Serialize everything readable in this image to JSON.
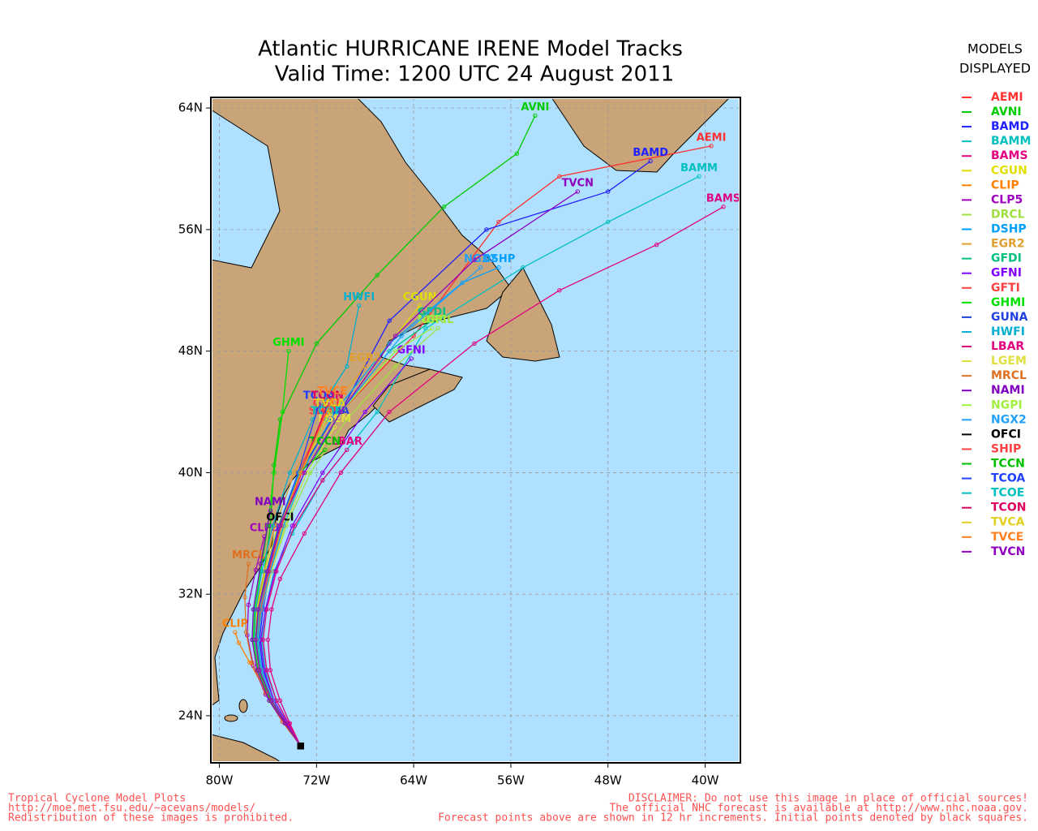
{
  "chart_data": {
    "type": "map",
    "title": "Atlantic HURRICANE IRENE Model Tracks",
    "subtitle": "Valid Time: 1200 UTC 24 August 2011",
    "legend_title": [
      "MODELS",
      "DISPLAYED"
    ],
    "footer_left": [
      "Tropical Cyclone Model Plots",
      "http://moe.met.fsu.edu/~acevans/models/",
      "Redistribution of these images is prohibited."
    ],
    "footer_right": [
      "DISCLAIMER: Do not use this image in place of official sources!",
      "The official NHC forecast is available at http://www.nhc.noaa.gov.",
      "Forecast points above are shown in 12 hr increments. Initial points denoted by black squares."
    ],
    "xlim": [
      -80.7,
      -37.1
    ],
    "ylim": [
      20.9,
      64.7
    ],
    "xticks": [
      {
        "value": -80,
        "label": "80W"
      },
      {
        "value": -72,
        "label": "72W"
      },
      {
        "value": -64,
        "label": "64W"
      },
      {
        "value": -56,
        "label": "56W"
      },
      {
        "value": -48,
        "label": "48W"
      },
      {
        "value": -40,
        "label": "40W"
      }
    ],
    "yticks": [
      {
        "value": 24,
        "label": "24N"
      },
      {
        "value": 32,
        "label": "32N"
      },
      {
        "value": 40,
        "label": "40N"
      },
      {
        "value": 48,
        "label": "48N"
      },
      {
        "value": 56,
        "label": "56N"
      },
      {
        "value": 64,
        "label": "64N"
      }
    ],
    "grid": true,
    "series": [
      {
        "name": "AEMI",
        "color": "#ff3030",
        "x": [
          -73.3,
          -74.5,
          -75.7,
          -76.7,
          -77,
          -76.8,
          -76,
          -75,
          -73,
          -70,
          -64,
          -57,
          -52,
          -39.5
        ],
        "values": [
          22,
          23.5,
          25,
          27,
          29,
          31,
          33.5,
          36.5,
          40,
          44,
          49,
          56.5,
          59.5,
          61.5
        ]
      },
      {
        "name": "AVNI",
        "color": "#00cc00",
        "x": [
          -73.3,
          -74.5,
          -75.7,
          -76.7,
          -77,
          -76.9,
          -76.3,
          -75.8,
          -75.5,
          -75,
          -72,
          -67,
          -61.5,
          -55.5,
          -54
        ],
        "values": [
          22,
          23.5,
          25,
          27,
          29,
          31,
          33.5,
          36.5,
          40.5,
          43.5,
          48.5,
          53,
          57.5,
          61,
          63.5
        ]
      },
      {
        "name": "BAMD",
        "color": "#2020ff",
        "x": [
          -73.3,
          -74.4,
          -75.5,
          -76.4,
          -76.7,
          -76.4,
          -75.8,
          -74.8,
          -73,
          -70,
          -66,
          -58,
          -48,
          -44.5
        ],
        "values": [
          22,
          23.5,
          25,
          27,
          29,
          31,
          33.5,
          36.5,
          40,
          44,
          50,
          56,
          58.5,
          60.5
        ]
      },
      {
        "name": "BAMM",
        "color": "#00c0c0",
        "x": [
          -73.3,
          -74.3,
          -75.3,
          -76.2,
          -76.5,
          -76.2,
          -75.5,
          -74,
          -71.5,
          -67,
          -63,
          -55,
          -48,
          -40.5
        ],
        "values": [
          22,
          23.5,
          25,
          27,
          29,
          31,
          33.5,
          36,
          39.5,
          44,
          49.5,
          53.5,
          56.5,
          59.5
        ]
      },
      {
        "name": "BAMS",
        "color": "#e00080",
        "x": [
          -73.3,
          -74.2,
          -75,
          -75.8,
          -76,
          -75.7,
          -75,
          -73,
          -70,
          -66,
          -59,
          -52,
          -44,
          -38.5
        ],
        "values": [
          22,
          23.5,
          25,
          27,
          29,
          31,
          33,
          36,
          40,
          44,
          48.5,
          52,
          55,
          57.5
        ]
      },
      {
        "name": "CGUN",
        "color": "#e0e000",
        "x": [
          -73.3,
          -74.5,
          -75.7,
          -76.7,
          -77.1,
          -76.9,
          -76.2,
          -75.2,
          -73.3,
          -70.5,
          -66.5,
          -63.5
        ],
        "values": [
          22,
          23.5,
          25,
          27,
          29,
          31,
          33.5,
          36.5,
          40,
          44,
          48,
          51
        ]
      },
      {
        "name": "CLIP",
        "color": "#ff8000",
        "x": [
          -73.3,
          -74.8,
          -76.3,
          -77.5,
          -78.4,
          -78.7
        ],
        "values": [
          22,
          23.8,
          25.8,
          27.5,
          28.8,
          29.5
        ]
      },
      {
        "name": "CLP5",
        "color": "#a000c0",
        "x": [
          -73.3,
          -74.8,
          -76.2,
          -77.2,
          -77.7,
          -77.6,
          -77,
          -76.3
        ],
        "values": [
          22,
          23.6,
          25.4,
          27.3,
          29.3,
          31.3,
          33.6,
          35.8
        ]
      },
      {
        "name": "DRCL",
        "color": "#a0e040",
        "x": [
          -73.3,
          -74.5,
          -75.6,
          -76.5,
          -76.8,
          -76.5,
          -75.7,
          -74.5,
          -72.5,
          -69.5,
          -65.5,
          -62
        ],
        "values": [
          22,
          23.5,
          25,
          27,
          29,
          31,
          33.5,
          36.5,
          40,
          43.5,
          47,
          49.5
        ]
      },
      {
        "name": "DSHP",
        "color": "#00a0ff",
        "x": [
          -73.3,
          -74.5,
          -75.7,
          -76.6,
          -76.9,
          -76.6,
          -75.9,
          -74.9,
          -73.2,
          -70.5,
          -66,
          -60,
          -57
        ],
        "values": [
          22,
          23.5,
          25,
          27,
          29,
          31,
          33.5,
          36.5,
          40,
          44,
          48.5,
          52.5,
          53.5
        ]
      },
      {
        "name": "EGR2",
        "color": "#e0a030",
        "x": [
          -73.3,
          -74.6,
          -75.8,
          -76.8,
          -77.2,
          -77,
          -76.3,
          -75.4,
          -73.8,
          -71.5,
          -68
        ],
        "values": [
          22,
          23.5,
          25,
          27,
          29,
          31,
          33.5,
          36.5,
          40,
          43.5,
          47
        ]
      },
      {
        "name": "GFDI",
        "color": "#00c080",
        "x": [
          -73.3,
          -74.5,
          -75.6,
          -76.5,
          -76.8,
          -76.5,
          -75.8,
          -74.6,
          -72.8,
          -70,
          -66,
          -62.5
        ],
        "values": [
          22,
          23.5,
          25,
          27,
          29,
          31,
          33.5,
          36.5,
          40,
          44,
          48,
          50
        ]
      },
      {
        "name": "GFNI",
        "color": "#8000ff",
        "x": [
          -73.3,
          -74.4,
          -75.5,
          -76.3,
          -76.6,
          -76.2,
          -75.4,
          -74,
          -71.5,
          -68,
          -64.2
        ],
        "values": [
          22,
          23.5,
          25,
          27,
          29,
          31,
          33.5,
          36.5,
          40,
          44,
          47.5
        ]
      },
      {
        "name": "GFTI",
        "color": "#ff4040",
        "x": [
          -73.3,
          -74.5,
          -75.7,
          -76.6,
          -76.9,
          -76.7,
          -76,
          -75,
          -73.5,
          -71.2
        ],
        "values": [
          22,
          23.5,
          25,
          27,
          29,
          31,
          33.5,
          36.5,
          40,
          44
        ]
      },
      {
        "name": "GHMI",
        "color": "#00e000",
        "x": [
          -73.3,
          -74.5,
          -75.8,
          -76.8,
          -77.2,
          -77.1,
          -76.6,
          -76,
          -75.5,
          -74.8,
          -74.3
        ],
        "values": [
          22,
          23.5,
          25,
          27,
          29,
          31,
          33.5,
          36.5,
          40,
          44,
          48
        ]
      },
      {
        "name": "GUNA",
        "color": "#2040e0",
        "x": [
          -73.3,
          -74.5,
          -75.7,
          -76.7,
          -77,
          -76.8,
          -76.1,
          -75.1,
          -73.4,
          -70.7
        ],
        "values": [
          22,
          23.5,
          25,
          27,
          29,
          31,
          33.5,
          36.5,
          40,
          43.5
        ]
      },
      {
        "name": "HWFI",
        "color": "#00b0d0",
        "x": [
          -73.3,
          -74.5,
          -75.7,
          -76.7,
          -77.1,
          -77,
          -76.5,
          -75.6,
          -74.2,
          -72.3,
          -69.5,
          -68.5
        ],
        "values": [
          22,
          23.5,
          25,
          27,
          29,
          31,
          33.5,
          36.5,
          40,
          43.5,
          47,
          51
        ]
      },
      {
        "name": "LBAR",
        "color": "#e00080",
        "x": [
          -73.3,
          -74.3,
          -75.3,
          -76.1,
          -76.4,
          -76.1,
          -75.3,
          -73.8,
          -71.5,
          -69.5
        ],
        "values": [
          22,
          23.5,
          25,
          27,
          29,
          31,
          33.5,
          36.5,
          39.5,
          41.5
        ]
      },
      {
        "name": "LGEM",
        "color": "#e0e040",
        "x": [
          -73.3,
          -74.5,
          -75.6,
          -76.5,
          -76.8,
          -76.5,
          -75.7,
          -74.6,
          -72.8,
          -70.5
        ],
        "values": [
          22,
          23.5,
          25,
          27,
          29,
          31,
          33.5,
          36.5,
          40,
          43
        ]
      },
      {
        "name": "MRCL",
        "color": "#e07020",
        "x": [
          -73.3,
          -74.8,
          -76.2,
          -77.3,
          -77.8,
          -77.9,
          -77.6
        ],
        "values": [
          22,
          23.6,
          25.5,
          27.5,
          29.5,
          31.8,
          34
        ]
      },
      {
        "name": "NAMI",
        "color": "#8000c0",
        "x": [
          -73.3,
          -74.6,
          -75.9,
          -76.9,
          -77.3,
          -77.2,
          -76.6,
          -75.8
        ],
        "values": [
          22,
          23.5,
          25,
          27,
          29,
          31,
          34,
          37.5
        ]
      },
      {
        "name": "NGPI",
        "color": "#a0f040",
        "x": [
          -73.3,
          -74.5,
          -75.7,
          -76.6,
          -76.9,
          -76.6,
          -75.9,
          -74.8,
          -73,
          -70,
          -65.5,
          -62.5
        ],
        "values": [
          22,
          23.5,
          25,
          27,
          29,
          31,
          33.5,
          36.5,
          40,
          44,
          48,
          49.5
        ]
      },
      {
        "name": "NGX2",
        "color": "#20a0ff",
        "x": [
          -73.3,
          -74.5,
          -75.6,
          -76.5,
          -76.8,
          -76.5,
          -75.8,
          -74.7,
          -73,
          -70,
          -65,
          -58.5
        ],
        "values": [
          22,
          23.5,
          25,
          27,
          29,
          31,
          33.5,
          36.5,
          40,
          44,
          49,
          53.5
        ]
      },
      {
        "name": "OFCI",
        "color": "#000000",
        "x": [
          -73.3,
          -74.5,
          -75.7,
          -76.7,
          -77,
          -76.8,
          -76,
          -75
        ],
        "values": [
          22,
          23.5,
          25,
          27,
          29,
          31,
          33.5,
          36.5
        ]
      },
      {
        "name": "SHIP",
        "color": "#ff4040",
        "x": [
          -73.3,
          -74.5,
          -75.7,
          -76.6,
          -76.9,
          -76.6,
          -75.9,
          -74.9,
          -73.2,
          -71.5
        ],
        "values": [
          22,
          23.5,
          25,
          27,
          29,
          31,
          33.5,
          36.5,
          40,
          43.5
        ]
      },
      {
        "name": "TCCN",
        "color": "#00c000",
        "x": [
          -73.3,
          -74.5,
          -75.7,
          -76.7,
          -77,
          -76.8,
          -76,
          -75,
          -73.4,
          -71.3
        ],
        "values": [
          22,
          23.5,
          25,
          27,
          29,
          31,
          33.5,
          36.5,
          40,
          41.5
        ]
      },
      {
        "name": "TCOA",
        "color": "#2040ff",
        "x": [
          -73.3,
          -74.5,
          -75.7,
          -76.7,
          -77,
          -76.8,
          -76.1,
          -75.1,
          -73.5,
          -71.8
        ],
        "values": [
          22,
          23.5,
          25,
          27,
          29,
          31,
          33.5,
          36.5,
          40,
          44.5
        ]
      },
      {
        "name": "TCOE",
        "color": "#00c0c0",
        "x": [
          -73.3,
          -74.5,
          -75.7,
          -76.6,
          -76.9,
          -76.7,
          -76,
          -75,
          -73.4,
          -71.2
        ],
        "values": [
          22,
          23.5,
          25,
          27,
          29,
          31,
          33.5,
          36.5,
          40,
          43.5
        ]
      },
      {
        "name": "TCON",
        "color": "#e00060",
        "x": [
          -73.3,
          -74.5,
          -75.7,
          -76.7,
          -77,
          -76.8,
          -76,
          -75,
          -73.3,
          -71.1
        ],
        "values": [
          22,
          23.5,
          25,
          27,
          29,
          31,
          33.5,
          36.5,
          40,
          44.5
        ]
      },
      {
        "name": "TVCA",
        "color": "#e0d020",
        "x": [
          -73.3,
          -74.5,
          -75.7,
          -76.7,
          -77,
          -76.8,
          -76,
          -75,
          -73.3,
          -70.9
        ],
        "values": [
          22,
          23.5,
          25,
          27,
          29,
          31,
          33.5,
          36.5,
          40,
          44
        ]
      },
      {
        "name": "TVCE",
        "color": "#ff8020",
        "x": [
          -73.3,
          -74.5,
          -75.7,
          -76.7,
          -77,
          -76.8,
          -76,
          -75,
          -73.3,
          -70.7
        ],
        "values": [
          22,
          23.5,
          25,
          27,
          29,
          31,
          33.5,
          36.5,
          40,
          44.8
        ]
      },
      {
        "name": "TVCN",
        "color": "#9000c0",
        "x": [
          -73.3,
          -74.5,
          -75.7,
          -76.7,
          -77,
          -76.8,
          -76,
          -75,
          -73,
          -70,
          -65.5,
          -59,
          -50.5
        ],
        "values": [
          22,
          23.5,
          25,
          27,
          29,
          31,
          33.5,
          36.5,
          40,
          44,
          49,
          54,
          58.5
        ]
      }
    ]
  }
}
